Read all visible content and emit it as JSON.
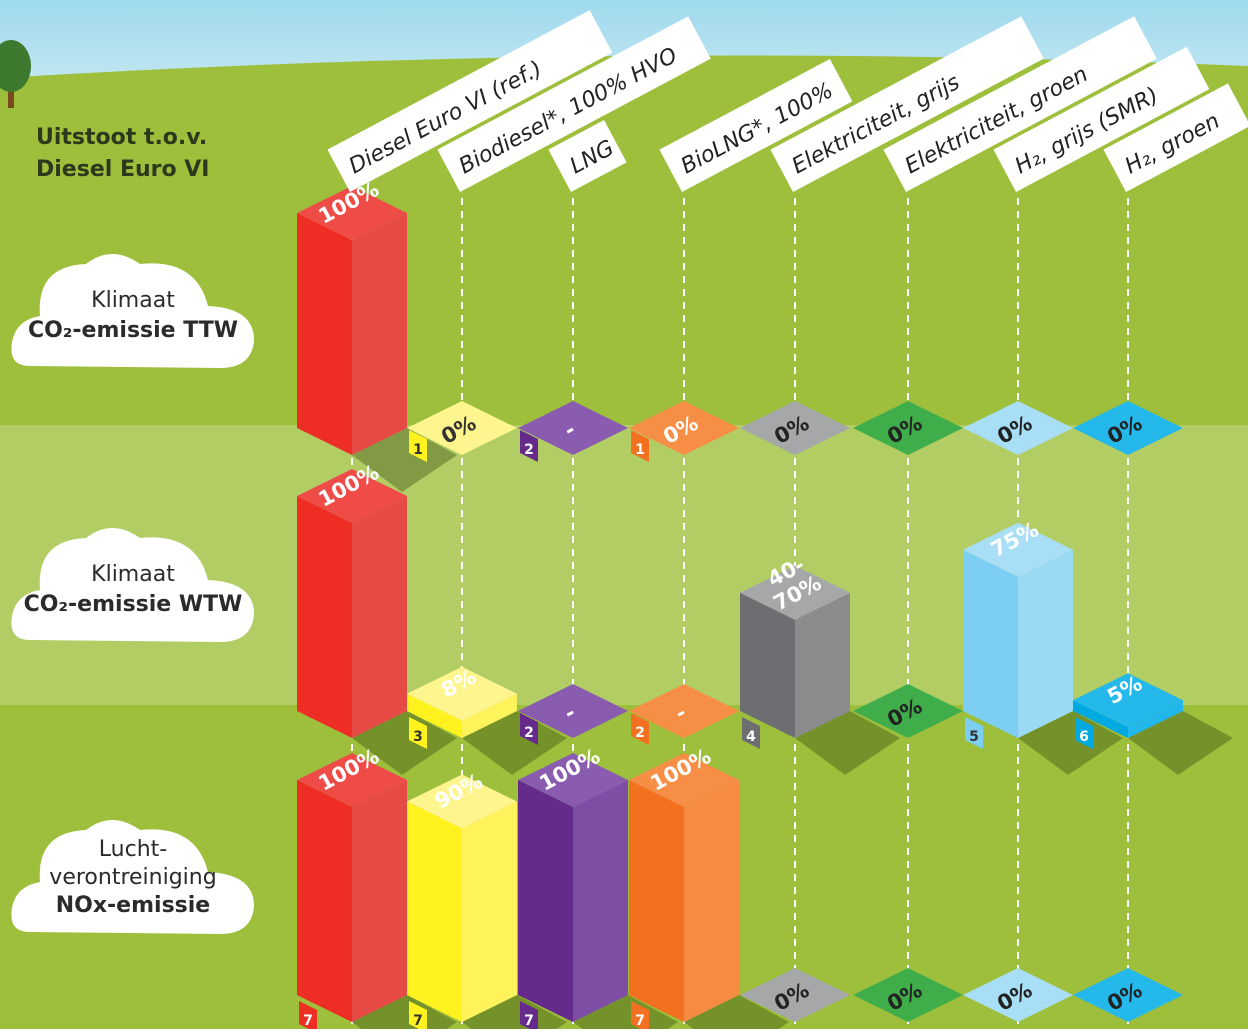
{
  "header": {
    "line1": "Uitstoot t.o.v.",
    "line2": "Diesel Euro VI"
  },
  "colors": {
    "sky": "#bfe6f3",
    "grass": "#9dbf3c",
    "band": "#b3cd65",
    "cloud": "#ffffff",
    "dashed": "#ffffff"
  },
  "chart_data": {
    "type": "bar",
    "categories": [
      "Diesel Euro VI (ref.)",
      "Biodiesel*, 100% HVO",
      "LNG",
      "BioLNG*, 100%",
      "Elektriciteit, grijs",
      "Elektriciteit, groen",
      "H₂, grijs (SMR)",
      "H₂, groen"
    ],
    "series_colors": [
      {
        "front": "#ee2d24",
        "side": "#e64a45",
        "top": "#f04c47"
      },
      {
        "front": "#fff21f",
        "side": "#fff35c",
        "top": "#fff58f"
      },
      {
        "front": "#652a8b",
        "side": "#7d4ea4",
        "top": "#8a5cb0"
      },
      {
        "front": "#f37021",
        "side": "#f58c42",
        "top": "#f68e45"
      },
      {
        "front": "#6d6e71",
        "side": "#8b8c8e",
        "top": "#a6a7a9"
      },
      {
        "front": "#2f8f3b",
        "side": "#38a046",
        "top": "#3fae4a"
      },
      {
        "front": "#7ccff2",
        "side": "#9bdaf5",
        "top": "#a8def6"
      },
      {
        "front": "#00a9e0",
        "side": "#22b7ea",
        "top": "#25b8ea"
      }
    ],
    "rows": [
      {
        "name": "CO2-emissie TTW",
        "cloud_line1": "Klimaat",
        "cloud_line2": "CO₂-emissie TTW",
        "values": [
          100,
          0,
          null,
          0,
          0,
          0,
          0,
          0
        ],
        "labels": [
          "100%",
          "0%",
          "-",
          "0%",
          "0%",
          "0%",
          "0%",
          "0%"
        ],
        "notes": [
          "",
          "1",
          "2",
          "1",
          "",
          "",
          "",
          ""
        ]
      },
      {
        "name": "CO2-emissie WTW",
        "cloud_line1": "Klimaat",
        "cloud_line2": "CO₂-emissie WTW",
        "values": [
          100,
          8,
          null,
          null,
          55,
          0,
          75,
          5
        ],
        "labels": [
          "100%",
          "8%",
          "-",
          "-",
          "40-70%",
          "0%",
          "75%",
          "5%"
        ],
        "notes": [
          "",
          "3",
          "2",
          "2",
          "4",
          "",
          "5",
          "6"
        ]
      },
      {
        "name": "NOx-emissie",
        "cloud_line1": "Lucht-",
        "cloud_line1b": "verontreiniging",
        "cloud_line2": "NOx-emissie",
        "values": [
          100,
          90,
          100,
          100,
          0,
          0,
          0,
          0
        ],
        "labels": [
          "100%",
          "90%",
          "100%",
          "100%",
          "0%",
          "0%",
          "0%",
          "0%"
        ],
        "notes": [
          "7",
          "7",
          "7",
          "7",
          "",
          "",
          "",
          ""
        ]
      }
    ]
  }
}
